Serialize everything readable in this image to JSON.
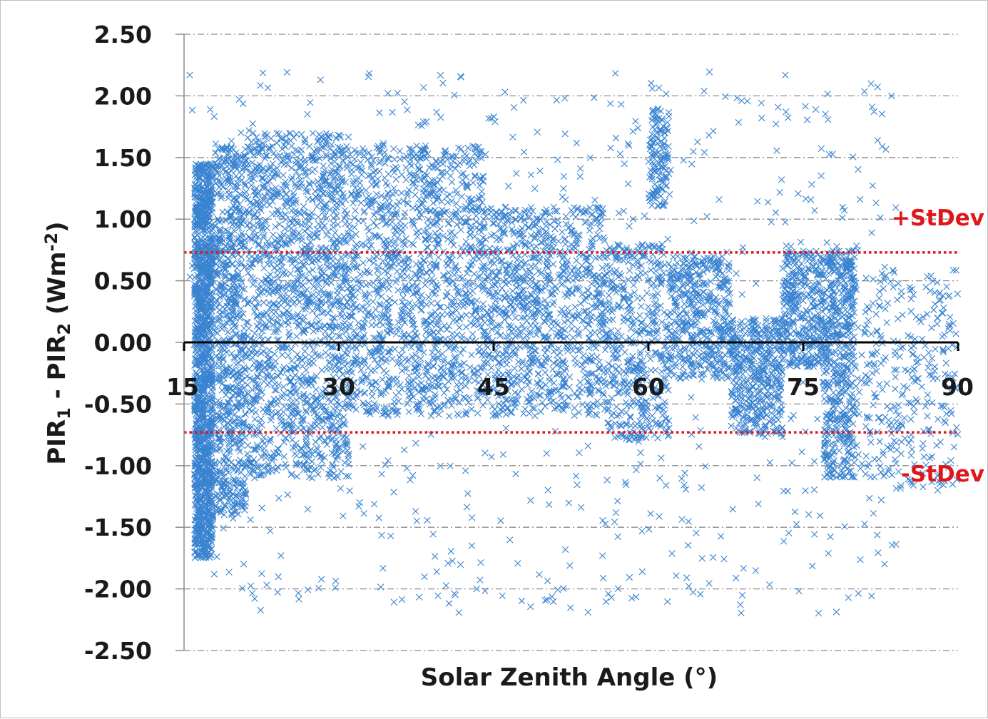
{
  "chart_data": {
    "type": "scatter",
    "xlabel": "Solar Zenith Angle (°)",
    "ylabel": {
      "parts": [
        {
          "t": "PIR",
          "s": "base"
        },
        {
          "t": "1",
          "s": "sub"
        },
        {
          "t": " - PIR",
          "s": "base"
        },
        {
          "t": "2",
          "s": "sub"
        },
        {
          "t": " (Wm",
          "s": "base"
        },
        {
          "t": "-2",
          "s": "sup"
        },
        {
          "t": ")",
          "s": "base"
        }
      ]
    },
    "xlim": [
      15,
      90
    ],
    "ylim": [
      -2.5,
      2.5
    ],
    "x_ticks": [
      15,
      30,
      45,
      60,
      75,
      90
    ],
    "x_tick_labels": [
      "15",
      "30",
      "45",
      "60",
      "75",
      "90"
    ],
    "y_ticks": [
      2.5,
      2.0,
      1.5,
      1.0,
      0.5,
      0.0,
      -0.5,
      -1.0,
      -1.5,
      -2.0,
      -2.5
    ],
    "y_tick_labels": [
      "2.50",
      "2.00",
      "1.50",
      "1.00",
      "0.50",
      "0.00",
      "-0.50",
      "-1.00",
      "-1.50",
      "-2.00",
      "-2.50"
    ],
    "grid": "horizontal dash-dot",
    "marker": "x",
    "colors": {
      "points": "#2e7ccf",
      "stdev": "#e0161b",
      "axis": "#000000",
      "grid": "#8c8c8c"
    },
    "stdev_lines": [
      {
        "label": "+StDev",
        "y": 0.73
      },
      {
        "label": "-StDev",
        "y": -0.73
      }
    ],
    "series": [
      {
        "approx_points": 9000,
        "density_profile": [
          {
            "x": [
              16.0,
              17.8
            ],
            "y": [
              -1.75,
              1.45
            ],
            "weight": 0.16
          },
          {
            "x": [
              18.0,
              21.0
            ],
            "y": [
              -1.4,
              1.6
            ],
            "weight": 0.08
          },
          {
            "x": [
              21.0,
              31.0
            ],
            "y": [
              -1.1,
              1.7
            ],
            "weight": 0.16
          },
          {
            "x": [
              31.0,
              44.0
            ],
            "y": [
              -0.6,
              1.6
            ],
            "weight": 0.14
          },
          {
            "x": [
              44.0,
              56.0
            ],
            "y": [
              -0.6,
              1.1
            ],
            "weight": 0.11
          },
          {
            "x": [
              56.0,
              62.0
            ],
            "y": [
              -0.8,
              0.8
            ],
            "weight": 0.05
          },
          {
            "x": [
              60.0,
              62.0
            ],
            "y": [
              1.1,
              1.9
            ],
            "weight": 0.015
          },
          {
            "x": [
              62.0,
              68.0
            ],
            "y": [
              -0.3,
              0.7
            ],
            "weight": 0.05
          },
          {
            "x": [
              68.0,
              73.0
            ],
            "y": [
              -0.75,
              0.2
            ],
            "weight": 0.05
          },
          {
            "x": [
              73.0,
              80.0
            ],
            "y": [
              -0.2,
              0.75
            ],
            "weight": 0.07
          },
          {
            "x": [
              77.0,
              80.0
            ],
            "y": [
              -1.1,
              -0.2
            ],
            "weight": 0.025
          },
          {
            "x": [
              80.0,
              90.0
            ],
            "y": [
              -1.2,
              0.6
            ],
            "weight": 0.035
          },
          {
            "x": [
              15.5,
              84.0
            ],
            "y": [
              -2.2,
              2.2
            ],
            "weight": 0.08
          }
        ]
      }
    ]
  }
}
